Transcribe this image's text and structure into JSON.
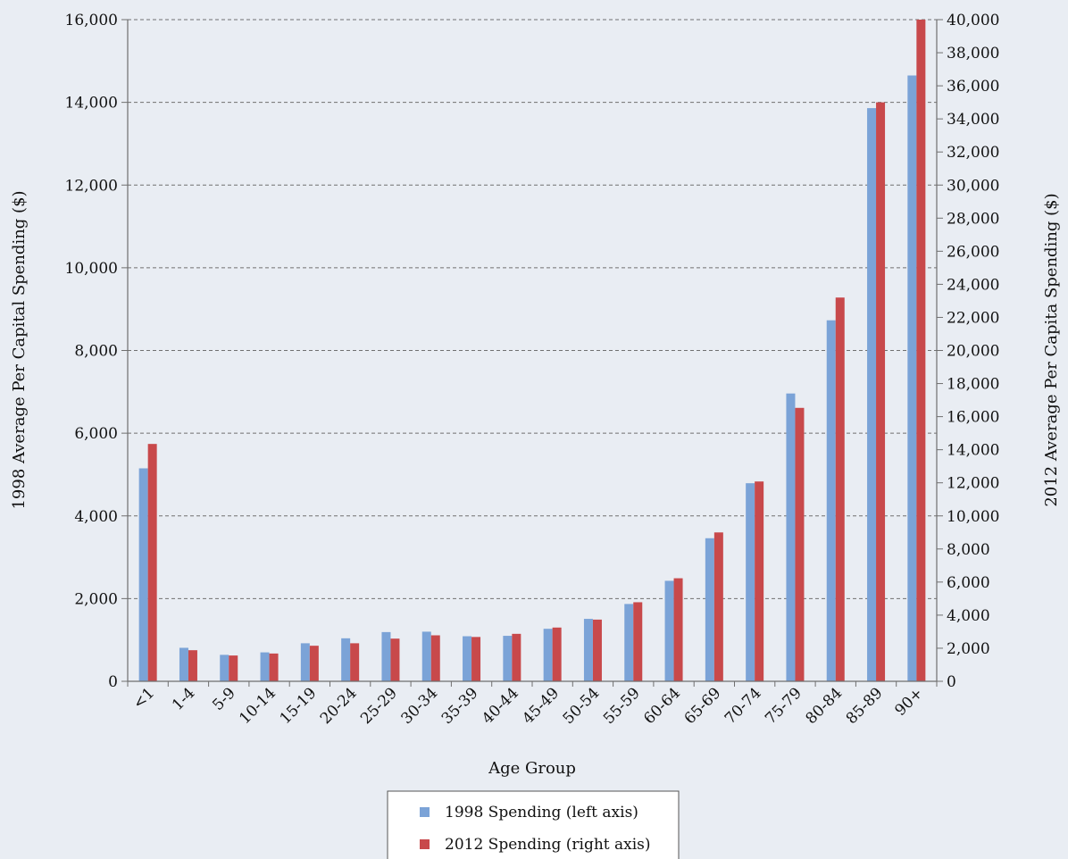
{
  "chart_data": {
    "type": "bar",
    "xlabel": "Age Group",
    "ylabel_left": "1998 Average Per Capital Spending ($)",
    "ylabel_right": "2012 Average Per Capita Spending ($)",
    "categories": [
      "<1",
      "1-4",
      "5-9",
      "10-14",
      "15-19",
      "20-24",
      "25-29",
      "30-34",
      "35-39",
      "40-44",
      "45-49",
      "50-54",
      "55-59",
      "60-64",
      "65-69",
      "70-74",
      "75-79",
      "80-84",
      "85-89",
      "90+"
    ],
    "series": [
      {
        "name": "1998 Spending (left axis)",
        "axis": "left",
        "color": "#7ba3d7",
        "values": [
          5150,
          810,
          640,
          700,
          920,
          1040,
          1190,
          1200,
          1090,
          1100,
          1270,
          1510,
          1870,
          2430,
          3460,
          4790,
          6960,
          8730,
          13860,
          14650
        ]
      },
      {
        "name": "2012 Spending  (right axis)",
        "axis": "right",
        "color": "#c8494b",
        "values": [
          14350,
          1880,
          1560,
          1680,
          2150,
          2300,
          2580,
          2780,
          2680,
          2870,
          3250,
          3730,
          4780,
          6230,
          9000,
          12080,
          16530,
          23200,
          35000,
          40000
        ]
      }
    ],
    "y_left": {
      "range": [
        0,
        16000
      ],
      "ticks": [
        "0",
        "2,000",
        "4,000",
        "6,000",
        "8,000",
        "10,000",
        "12,000",
        "14,000",
        "16,000"
      ]
    },
    "y_right": {
      "range": [
        0,
        40000
      ],
      "ticks": [
        "0",
        "2,000",
        "4,000",
        "6,000",
        "8,000",
        "10,000",
        "12,000",
        "14,000",
        "16,000",
        "18,000",
        "20,000",
        "22,000",
        "24,000",
        "26,000",
        "28,000",
        "30,000",
        "32,000",
        "34,000",
        "36,000",
        "38,000",
        "40,000"
      ]
    },
    "grid": "horizontal dashed",
    "legend_position": "bottom-center",
    "colors": {
      "background": "#e9edf3",
      "grid": "#707070",
      "axis": "#6f6f6f"
    }
  }
}
